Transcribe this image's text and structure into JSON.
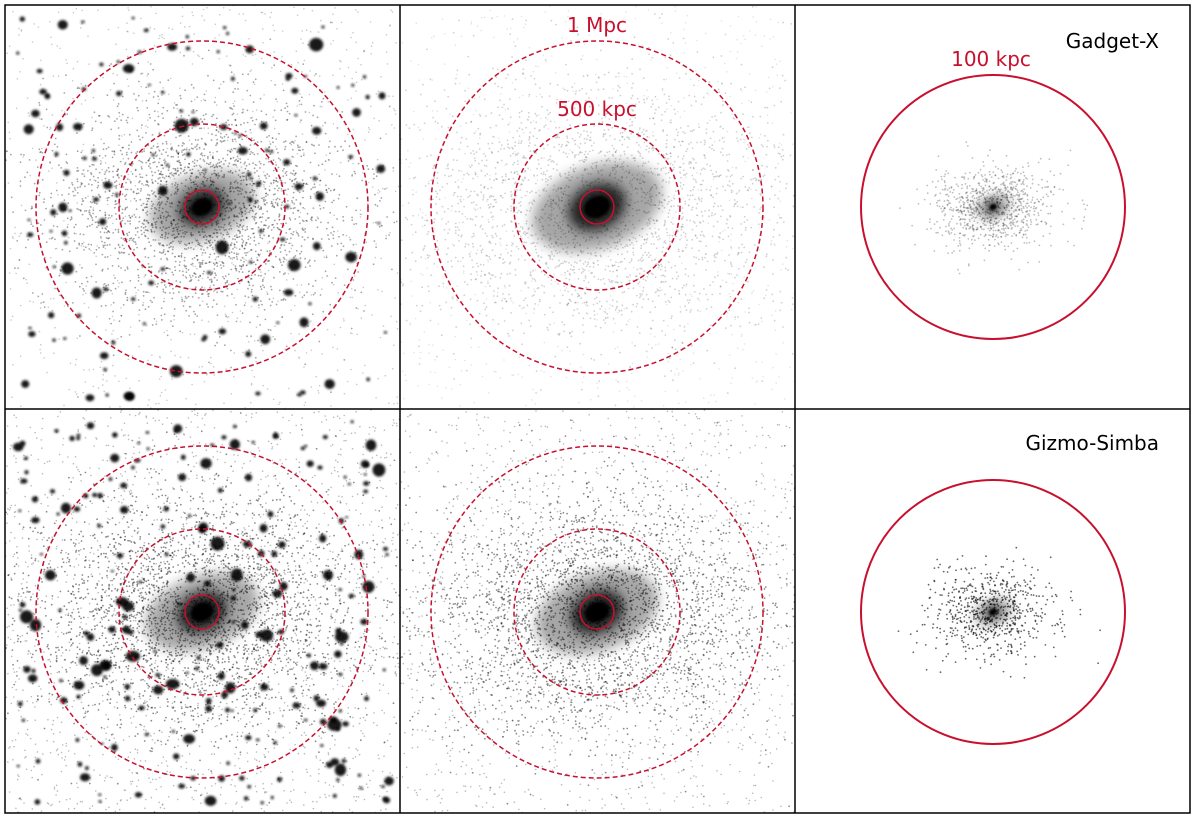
{
  "figure": {
    "rows": [
      {
        "simulation_label": "Gadget-X"
      },
      {
        "simulation_label": "Gizmo-Simba"
      }
    ],
    "aperture_labels": {
      "r1": "1 Mpc",
      "r500": "500 kpc",
      "r100": "100 kpc"
    },
    "colors": {
      "aperture": "#c8102e",
      "particles": "#000000",
      "frame": "#000000",
      "background": "#ffffff"
    }
  }
}
